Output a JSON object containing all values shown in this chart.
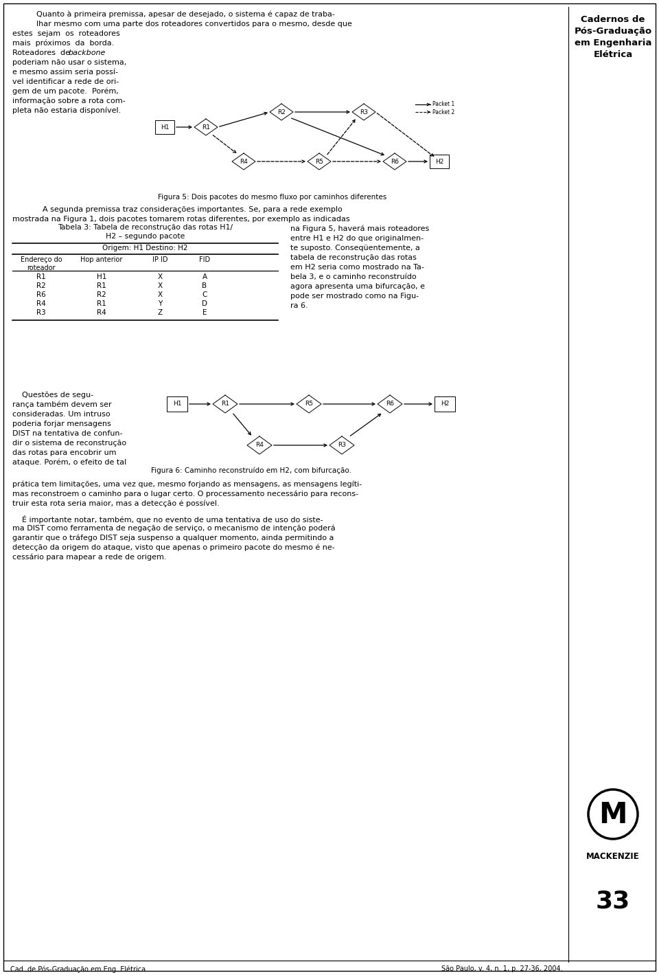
{
  "bg_color": "#ffffff",
  "text_color": "#000000",
  "page_width": 9.6,
  "page_height": 14.19,
  "sidebar_title": "Cadernos de\nPós-Graduação\nem Engenharia\nElétrica",
  "fig5_caption": "Figura 5: Dois pacotes do mesmo fluxo por caminhos diferentes",
  "table_origem": "Origem: H1 Destino: H2",
  "table_data": [
    [
      "R1",
      "H1",
      "X",
      "A"
    ],
    [
      "R2",
      "R1",
      "X",
      "B"
    ],
    [
      "R6",
      "R2",
      "X",
      "C"
    ],
    [
      "R4",
      "R1",
      "Y",
      "D"
    ],
    [
      "R3",
      "R4",
      "Z",
      "E"
    ]
  ],
  "fig6_caption": "Figura 6: Caminho reconstruído em H2, com bifurcação.",
  "footer_left": "Cad. de Pós-Graduação em Eng. Elétrica",
  "footer_right": "São Paulo, v. 4, n. 1, p. 27-36, 2004.",
  "page_number": "33",
  "mackenzie": "MACKENZIE"
}
